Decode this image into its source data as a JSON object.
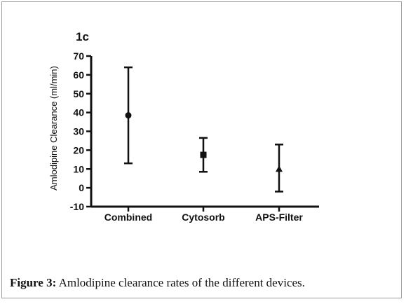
{
  "chart_data": {
    "type": "scatter",
    "panel_label": "1c",
    "title": "",
    "xlabel": "",
    "ylabel": "Amlodipine Clearance (ml/min)",
    "categories": [
      "Combined",
      "Cytosorb",
      "APS-Filter"
    ],
    "series": [
      {
        "values": [
          38.5,
          17.5,
          10
        ],
        "error_low": [
          13,
          8.5,
          -2
        ],
        "error_high": [
          64,
          26.5,
          23
        ],
        "markers": [
          "circle",
          "square",
          "triangle"
        ]
      }
    ],
    "ylim": [
      -10,
      70
    ],
    "yticks": [
      "-10",
      "0",
      "10",
      "20",
      "30",
      "40",
      "50",
      "60",
      "70"
    ],
    "grid": false,
    "legend": "none"
  },
  "caption": {
    "label": "Figure 3:",
    "text": " Amlodipine clearance rates of the different devices."
  },
  "colors": {
    "ink": "#111111",
    "frame": "#9a9a9a"
  }
}
